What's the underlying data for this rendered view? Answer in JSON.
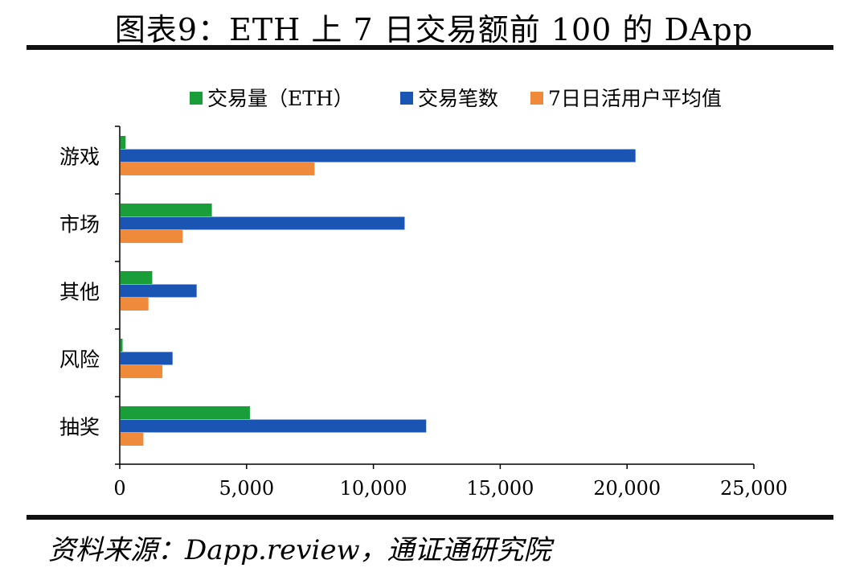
{
  "title": "图表9：ETH 上 7 日交易额前 100 的 DApp",
  "source": "资料来源：Dapp.review，通证通研究院",
  "chart_data": {
    "type": "bar",
    "orientation": "horizontal",
    "categories": [
      "游戏",
      "市场",
      "其他",
      "风险",
      "抽奖"
    ],
    "series": [
      {
        "name": "交易量（ETH）",
        "color": "#1a9e3a",
        "values": [
          200,
          3600,
          1250,
          80,
          5100
        ]
      },
      {
        "name": "交易笔数",
        "color": "#1b55b4",
        "values": [
          20300,
          11200,
          3000,
          2050,
          12050
        ]
      },
      {
        "name": "7日日活用户平均值",
        "color": "#ee8a3a",
        "values": [
          7650,
          2450,
          1100,
          1650,
          900
        ]
      }
    ],
    "xlim": [
      0,
      25000
    ],
    "xticks": [
      0,
      5000,
      10000,
      15000,
      20000,
      25000
    ],
    "xtick_labels": [
      "0",
      "5,000",
      "10,000",
      "15,000",
      "20,000",
      "25,000"
    ],
    "legend_position": "top",
    "grid": false
  }
}
